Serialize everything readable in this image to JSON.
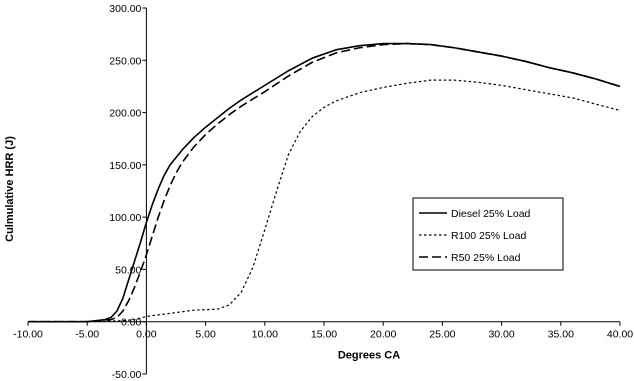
{
  "chart_data": {
    "type": "line",
    "title": "",
    "xlabel": "Degrees CA",
    "ylabel": "Culmulative HRR (J)",
    "xlim": [
      -10,
      40
    ],
    "ylim": [
      -50,
      300
    ],
    "x_ticks": [
      "-10.00",
      "-5.00",
      "0.00",
      "5.00",
      "10.00",
      "15.00",
      "20.00",
      "25.00",
      "30.00",
      "35.00",
      "40.00"
    ],
    "y_ticks": [
      "-50.00",
      "0.00",
      "50.00",
      "100.00",
      "150.00",
      "200.00",
      "250.00",
      "300.00"
    ],
    "grid": false,
    "legend_position": "right-middle",
    "series": [
      {
        "name": "Diesel 25% Load",
        "line_style": "solid",
        "color": "#000000",
        "points": [
          [
            -10,
            0
          ],
          [
            -5,
            0
          ],
          [
            -3.5,
            2
          ],
          [
            -3,
            4
          ],
          [
            -2.5,
            10
          ],
          [
            -2,
            22
          ],
          [
            -1.5,
            40
          ],
          [
            -1,
            58
          ],
          [
            -0.5,
            76
          ],
          [
            0,
            95
          ],
          [
            0.5,
            112
          ],
          [
            1,
            127
          ],
          [
            1.5,
            140
          ],
          [
            2,
            150
          ],
          [
            3,
            164
          ],
          [
            4,
            176
          ],
          [
            5,
            186
          ],
          [
            6,
            195
          ],
          [
            7,
            204
          ],
          [
            8,
            212
          ],
          [
            9,
            219
          ],
          [
            10,
            226
          ],
          [
            12,
            240
          ],
          [
            14,
            252
          ],
          [
            16,
            260
          ],
          [
            18,
            264
          ],
          [
            20,
            266
          ],
          [
            22,
            266
          ],
          [
            24,
            265
          ],
          [
            26,
            262
          ],
          [
            28,
            258
          ],
          [
            30,
            254
          ],
          [
            32,
            249
          ],
          [
            34,
            243
          ],
          [
            36,
            238
          ],
          [
            38,
            232
          ],
          [
            40,
            225
          ]
        ]
      },
      {
        "name": "R100 25% Load",
        "line_style": "dotted",
        "color": "#000000",
        "points": [
          [
            -10,
            0
          ],
          [
            -5,
            0
          ],
          [
            -2,
            1
          ],
          [
            -1,
            2
          ],
          [
            0,
            5
          ],
          [
            2,
            8
          ],
          [
            4,
            11
          ],
          [
            6,
            12
          ],
          [
            7,
            16
          ],
          [
            8,
            28
          ],
          [
            9,
            52
          ],
          [
            10,
            88
          ],
          [
            11,
            125
          ],
          [
            12,
            160
          ],
          [
            13,
            182
          ],
          [
            14,
            196
          ],
          [
            15,
            205
          ],
          [
            16,
            211
          ],
          [
            18,
            219
          ],
          [
            20,
            224
          ],
          [
            22,
            228
          ],
          [
            24,
            231
          ],
          [
            26,
            231
          ],
          [
            28,
            229
          ],
          [
            30,
            226
          ],
          [
            32,
            222
          ],
          [
            34,
            218
          ],
          [
            36,
            214
          ],
          [
            38,
            208
          ],
          [
            40,
            202
          ]
        ]
      },
      {
        "name": "R50 25% Load",
        "line_style": "dashed",
        "color": "#000000",
        "points": [
          [
            -10,
            0
          ],
          [
            -5,
            0
          ],
          [
            -3,
            2
          ],
          [
            -2.5,
            4
          ],
          [
            -2,
            10
          ],
          [
            -1.5,
            20
          ],
          [
            -1,
            33
          ],
          [
            -0.5,
            48
          ],
          [
            0,
            64
          ],
          [
            0.5,
            82
          ],
          [
            1,
            100
          ],
          [
            1.5,
            116
          ],
          [
            2,
            130
          ],
          [
            2.5,
            142
          ],
          [
            3,
            152
          ],
          [
            4,
            167
          ],
          [
            5,
            179
          ],
          [
            6,
            189
          ],
          [
            7,
            198
          ],
          [
            8,
            206
          ],
          [
            9,
            213
          ],
          [
            10,
            220
          ],
          [
            12,
            235
          ],
          [
            14,
            248
          ],
          [
            16,
            257
          ],
          [
            18,
            262
          ],
          [
            20,
            265
          ],
          [
            22,
            266
          ],
          [
            24,
            265
          ],
          [
            26,
            262
          ],
          [
            28,
            258
          ],
          [
            30,
            254
          ],
          [
            32,
            249
          ],
          [
            34,
            243
          ],
          [
            36,
            238
          ],
          [
            38,
            232
          ],
          [
            40,
            225
          ]
        ]
      }
    ]
  }
}
